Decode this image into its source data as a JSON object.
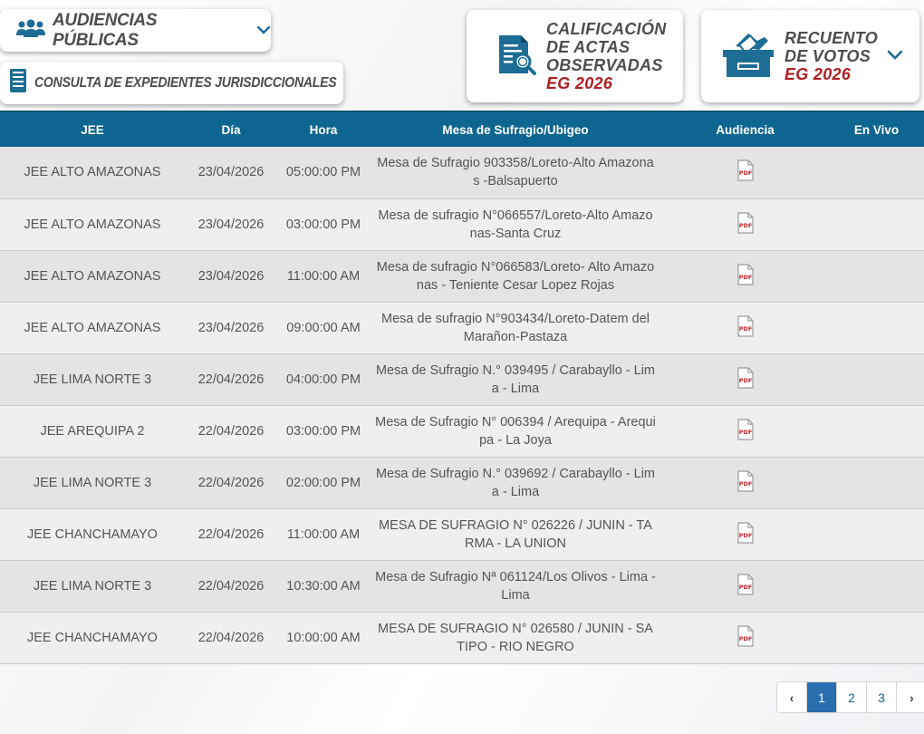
{
  "header": {
    "audiencias_label": "AUDIENCIAS PÚBLICAS",
    "consulta_label": "CONSULTA DE EXPEDIENTES JURISDICCIONALES",
    "calificacion": {
      "line1": "CALIFICACIÓN",
      "line2": "DE ACTAS",
      "line3": "OBSERVADAS",
      "line4": "EG 2026"
    },
    "recuento": {
      "line1": "RECUENTO",
      "line2": "DE VOTOS",
      "line3": "EG 2026"
    }
  },
  "table": {
    "columns": [
      "JEE",
      "Día",
      "Hora",
      "Mesa de Sufragio/Ubigeo",
      "Audiencia",
      "En Vivo"
    ],
    "rows": [
      {
        "jee": "JEE ALTO AMAZONAS",
        "dia": "23/04/2026",
        "hora": "05:00:00 PM",
        "mesa": "Mesa de Sufragio 903358/Loreto-Alto Amazonas -Balsapuerto"
      },
      {
        "jee": "JEE ALTO AMAZONAS",
        "dia": "23/04/2026",
        "hora": "03:00:00 PM",
        "mesa": "Mesa de sufragio N°066557/Loreto-Alto Amazonas-Santa Cruz"
      },
      {
        "jee": "JEE ALTO AMAZONAS",
        "dia": "23/04/2026",
        "hora": "11:00:00 AM",
        "mesa": "Mesa de sufragio N°066583/Loreto- Alto Amazonas - Teniente Cesar Lopez Rojas"
      },
      {
        "jee": "JEE ALTO AMAZONAS",
        "dia": "23/04/2026",
        "hora": "09:00:00 AM",
        "mesa": "Mesa de sufragio N°903434/Loreto-Datem del Marañon-Pastaza"
      },
      {
        "jee": "JEE LIMA NORTE 3",
        "dia": "22/04/2026",
        "hora": "04:00:00 PM",
        "mesa": "Mesa de Sufragio N.° 039495 / Carabayllo - Lima - Lima"
      },
      {
        "jee": "JEE AREQUIPA 2",
        "dia": "22/04/2026",
        "hora": "03:00:00 PM",
        "mesa": "Mesa de Sufragio N° 006394 / Arequipa - Arequipa - La Joya"
      },
      {
        "jee": "JEE LIMA NORTE 3",
        "dia": "22/04/2026",
        "hora": "02:00:00 PM",
        "mesa": "Mesa de Sufragio N.° 039692 / Carabayllo - Lima - Lima"
      },
      {
        "jee": "JEE CHANCHAMAYO",
        "dia": "22/04/2026",
        "hora": "11:00:00 AM",
        "mesa": "MESA DE SUFRAGIO N° 026226 / JUNIN - TARMA - LA UNION"
      },
      {
        "jee": "JEE LIMA NORTE 3",
        "dia": "22/04/2026",
        "hora": "10:30:00 AM",
        "mesa": "Mesa de Sufragio Nª 061124/Los Olivos - Lima - Lima"
      },
      {
        "jee": "JEE CHANCHAMAYO",
        "dia": "22/04/2026",
        "hora": "10:00:00 AM",
        "mesa": "MESA DE SUFRAGIO N° 026580 / JUNIN - SATIPO - RIO NEGRO"
      }
    ]
  },
  "pagination": {
    "pages": [
      "1",
      "2",
      "3"
    ],
    "current": "1",
    "prev": "‹",
    "next": "›"
  },
  "pdf_label": "PDF",
  "colors": {
    "header_bg": "#0d6690",
    "accent_red": "#b01e23",
    "active_page": "#2a6fb0"
  }
}
